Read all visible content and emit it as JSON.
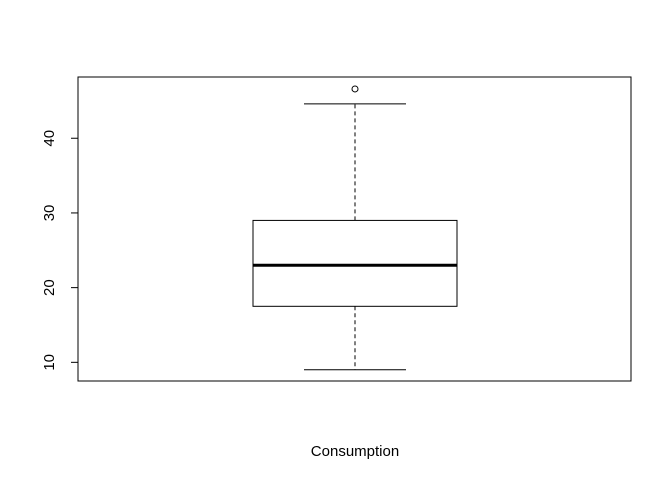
{
  "chart_data": {
    "type": "boxplot",
    "title": "",
    "xlabel": "Consumption",
    "ylabel": "",
    "ylim": [
      7.5,
      48.2
    ],
    "y_ticks": [
      10,
      20,
      30,
      40
    ],
    "grid": false,
    "legend": "none",
    "boxes": [
      {
        "whisker_low": 9.0,
        "q1": 17.5,
        "median": 23.0,
        "q3": 29.0,
        "whisker_high": 44.6,
        "outliers": [
          46.6
        ]
      }
    ],
    "colors": {
      "stroke": "#000000",
      "fill": "#ffffff"
    }
  }
}
